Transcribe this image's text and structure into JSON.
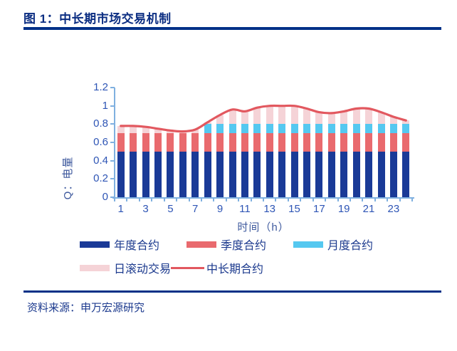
{
  "figure": {
    "title": "图 1：中长期市场交易机制",
    "source": "资料来源：申万宏源研究"
  },
  "colors": {
    "title_navy": "#0c2e82",
    "rule_navy": "#003087",
    "axis_tick_text": "#2e55b5",
    "axis_line": "#7fb0e0",
    "annual_bar": "#1a3a97",
    "quarterly_bar": "#e96a6e",
    "monthly_bar": "#55c8f0",
    "daily_bar": "#f5d3d7",
    "line_red": "#e2585f",
    "legend_text": "#1c3a8e"
  },
  "chart_data": {
    "type": "bar",
    "subtype": "stacked-bars-with-line-overlay",
    "x": [
      1,
      2,
      3,
      4,
      5,
      6,
      7,
      8,
      9,
      10,
      11,
      12,
      13,
      14,
      15,
      16,
      17,
      18,
      19,
      20,
      21,
      22,
      23,
      24
    ],
    "xtick_labels": [
      "1",
      "3",
      "5",
      "7",
      "9",
      "11",
      "13",
      "15",
      "17",
      "19",
      "21",
      "23"
    ],
    "series": [
      {
        "key": "annual",
        "name": "年度合约",
        "color": "#1a3a97",
        "values": [
          0.5,
          0.5,
          0.5,
          0.5,
          0.5,
          0.5,
          0.5,
          0.5,
          0.5,
          0.5,
          0.5,
          0.5,
          0.5,
          0.5,
          0.5,
          0.5,
          0.5,
          0.5,
          0.5,
          0.5,
          0.5,
          0.5,
          0.5,
          0.5
        ]
      },
      {
        "key": "quarterly",
        "name": "季度合约",
        "color": "#e96a6e",
        "values": [
          0.2,
          0.2,
          0.2,
          0.2,
          0.2,
          0.2,
          0.2,
          0.2,
          0.2,
          0.2,
          0.2,
          0.2,
          0.2,
          0.2,
          0.2,
          0.2,
          0.2,
          0.2,
          0.2,
          0.2,
          0.2,
          0.2,
          0.2,
          0.2
        ]
      },
      {
        "key": "monthly",
        "name": "月度合约",
        "color": "#55c8f0",
        "values": [
          0,
          0,
          0,
          0,
          0,
          0,
          0,
          0.1,
          0.1,
          0.1,
          0.1,
          0.1,
          0.1,
          0.1,
          0.1,
          0.1,
          0.1,
          0.1,
          0.1,
          0.1,
          0.1,
          0.1,
          0.1,
          0.1
        ]
      },
      {
        "key": "daily-rolling",
        "name": "日滚动交易",
        "color": "#f5d3d7",
        "values": [
          0.08,
          0.08,
          0.07,
          0.05,
          0.03,
          0.02,
          0.04,
          0.02,
          0.1,
          0.16,
          0.14,
          0.18,
          0.2,
          0.2,
          0.2,
          0.17,
          0.13,
          0.12,
          0.14,
          0.17,
          0.17,
          0.13,
          0.08,
          0.04
        ]
      }
    ],
    "line_series": {
      "key": "medium-long-term",
      "name": "中长期合约",
      "color": "#e2585f",
      "values": [
        0.78,
        0.78,
        0.77,
        0.75,
        0.73,
        0.72,
        0.74,
        0.82,
        0.9,
        0.96,
        0.94,
        0.98,
        1.0,
        1.0,
        1.0,
        0.97,
        0.93,
        0.92,
        0.94,
        0.97,
        0.97,
        0.93,
        0.88,
        0.84
      ]
    },
    "xlabel": "时间（h）",
    "ylabel": "Q：电量",
    "ylim": [
      0,
      1.2
    ],
    "yticks": [
      0,
      0.2,
      0.4,
      0.6,
      0.8,
      1,
      1.2
    ],
    "ytick_labels": [
      "0",
      "0.2",
      "0.4",
      "0.6",
      "0.8",
      "1",
      "1.2"
    ],
    "grid": "off",
    "legend_position": "bottom"
  },
  "legend": {
    "rows": [
      [
        {
          "key": "annual",
          "label": "年度合约",
          "swatch": "rect",
          "color": "#1a3a97"
        },
        {
          "key": "quarterly",
          "label": "季度合约",
          "swatch": "rect",
          "color": "#e96a6e"
        },
        {
          "key": "monthly",
          "label": "月度合约",
          "swatch": "rect",
          "color": "#55c8f0"
        }
      ],
      [
        {
          "key": "daily-rolling",
          "label": "日滚动交易",
          "swatch": "rect",
          "color": "#f5d3d7"
        },
        {
          "key": "medium-long-term",
          "label": "中长期合约",
          "swatch": "line",
          "color": "#e2585f"
        }
      ]
    ]
  }
}
